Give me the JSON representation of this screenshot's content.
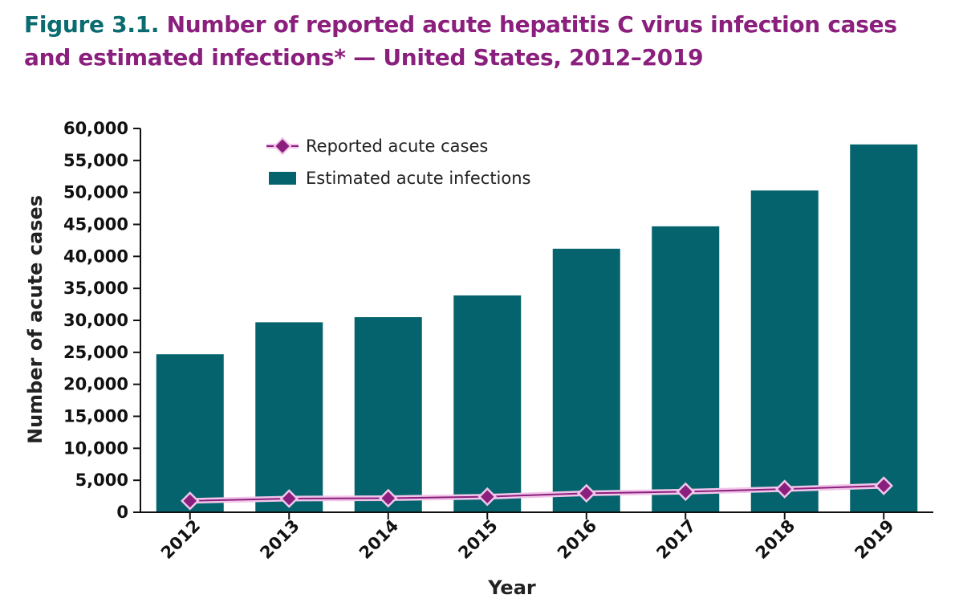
{
  "figure": {
    "label": "Figure 3.1.",
    "title": "Number of reported acute hepatitis C virus infection cases and estimated infections* — United States, 2012–2019"
  },
  "colors": {
    "figure_label": "#0a6b70",
    "title": "#8b1f7d",
    "bar": "#05636d",
    "line": "#8b1f7d",
    "line_halo": "#f2c6ea"
  },
  "chart_data": {
    "type": "bar",
    "categories": [
      "2012",
      "2013",
      "2014",
      "2015",
      "2016",
      "2017",
      "2018",
      "2019"
    ],
    "series": [
      {
        "name": "Estimated acute infections",
        "type": "bar",
        "values": [
          24700,
          29700,
          30500,
          33900,
          41200,
          44700,
          50300,
          57500
        ]
      },
      {
        "name": "Reported acute cases",
        "type": "line",
        "marker": "diamond",
        "values": [
          1778,
          2138,
          2194,
          2436,
          2967,
          3216,
          3621,
          4136
        ]
      }
    ],
    "xlabel": "Year",
    "ylabel": "Number of acute cases",
    "ylim": [
      0,
      60000
    ],
    "yticks": [
      "0",
      "5,000",
      "10,000",
      "15,000",
      "20,000",
      "25,000",
      "30,000",
      "35,000",
      "40,000",
      "45,000",
      "50,000",
      "55,000",
      "60,000"
    ],
    "grid": false,
    "legend_position": "top-left"
  }
}
